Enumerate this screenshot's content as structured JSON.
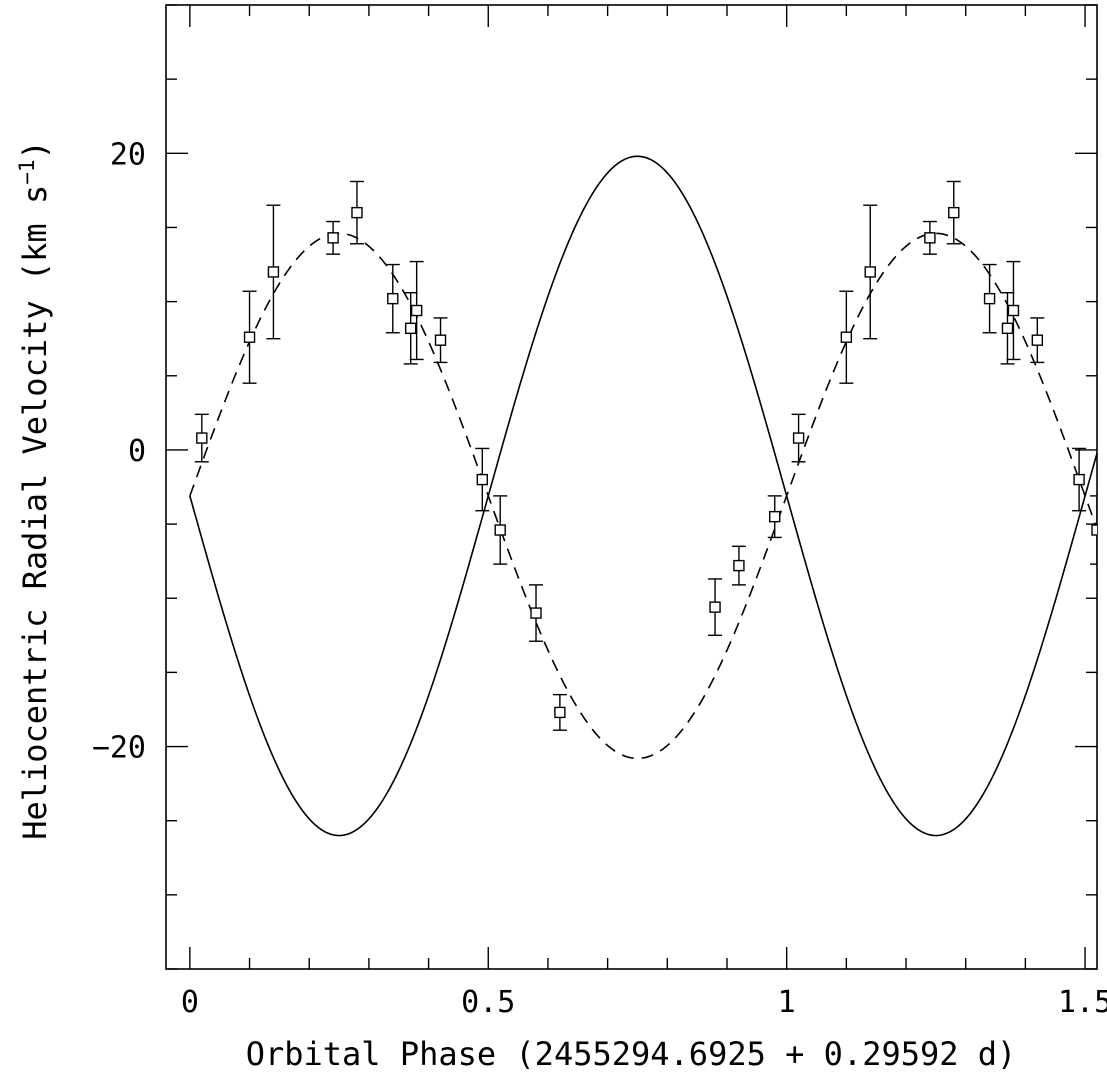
{
  "chart_data": {
    "type": "scatter",
    "title": "",
    "xlabel": "Orbital Phase (2455294.6925 + 0.29592 d)",
    "ylabel_main": "Heliocentric Radial Velocity (km s",
    "ylabel_sup": "−1",
    "ylabel_close": ")",
    "xlim": [
      -0.04,
      1.52
    ],
    "ylim": [
      -35,
      30
    ],
    "x_major_ticks": [
      0,
      0.5,
      1,
      1.5
    ],
    "x_major_tick_labels": [
      "0",
      "0.5",
      "1",
      "1.5"
    ],
    "x_minor_step": 0.1,
    "y_major_ticks": [
      -20,
      0,
      20
    ],
    "y_major_tick_labels": [
      "−20",
      "0",
      "20"
    ],
    "y_minor_step": 5,
    "grid": false,
    "legend": "none",
    "series": [
      {
        "kind": "points_with_error_bars",
        "marker": "open-square",
        "points": [
          {
            "x": 0.02,
            "y": 0.8,
            "err": 1.6
          },
          {
            "x": 0.1,
            "y": 7.6,
            "err": 3.1
          },
          {
            "x": 0.14,
            "y": 12.0,
            "err": 4.5
          },
          {
            "x": 0.24,
            "y": 14.3,
            "err": 1.1
          },
          {
            "x": 0.28,
            "y": 16.0,
            "err": 2.1
          },
          {
            "x": 0.34,
            "y": 10.2,
            "err": 2.3
          },
          {
            "x": 0.37,
            "y": 8.2,
            "err": 2.4
          },
          {
            "x": 0.38,
            "y": 9.4,
            "err": 3.3
          },
          {
            "x": 0.42,
            "y": 7.4,
            "err": 1.5
          },
          {
            "x": 0.49,
            "y": -2.0,
            "err": 2.1
          },
          {
            "x": 0.52,
            "y": -5.4,
            "err": 2.3
          },
          {
            "x": 0.58,
            "y": -11.0,
            "err": 1.9
          },
          {
            "x": 0.62,
            "y": -17.7,
            "err": 1.2
          },
          {
            "x": 0.88,
            "y": -10.6,
            "err": 1.9
          },
          {
            "x": 0.92,
            "y": -7.8,
            "err": 1.3
          },
          {
            "x": 0.98,
            "y": -4.5,
            "err": 1.4
          },
          {
            "x": 1.02,
            "y": 0.8,
            "err": 1.6
          },
          {
            "x": 1.1,
            "y": 7.6,
            "err": 3.1
          },
          {
            "x": 1.14,
            "y": 12.0,
            "err": 4.5
          },
          {
            "x": 1.24,
            "y": 14.3,
            "err": 1.1
          },
          {
            "x": 1.28,
            "y": 16.0,
            "err": 2.1
          },
          {
            "x": 1.34,
            "y": 10.2,
            "err": 2.3
          },
          {
            "x": 1.37,
            "y": 8.2,
            "err": 2.4
          },
          {
            "x": 1.38,
            "y": 9.4,
            "err": 3.3
          },
          {
            "x": 1.42,
            "y": 7.4,
            "err": 1.5
          },
          {
            "x": 1.49,
            "y": -2.0,
            "err": 2.1
          },
          {
            "x": 1.52,
            "y": -5.4,
            "err": 2.3
          }
        ]
      },
      {
        "kind": "curve",
        "style": "dashed",
        "function": "sinusoid",
        "gamma": -3.1,
        "amplitude": 17.7,
        "phase_of_maximum": 0.25,
        "x_range": [
          0,
          1.52
        ]
      },
      {
        "kind": "curve",
        "style": "solid",
        "function": "sinusoid",
        "gamma": -3.1,
        "amplitude": 22.9,
        "phase_of_maximum": 0.75,
        "x_range": [
          0,
          1.52
        ]
      }
    ]
  }
}
